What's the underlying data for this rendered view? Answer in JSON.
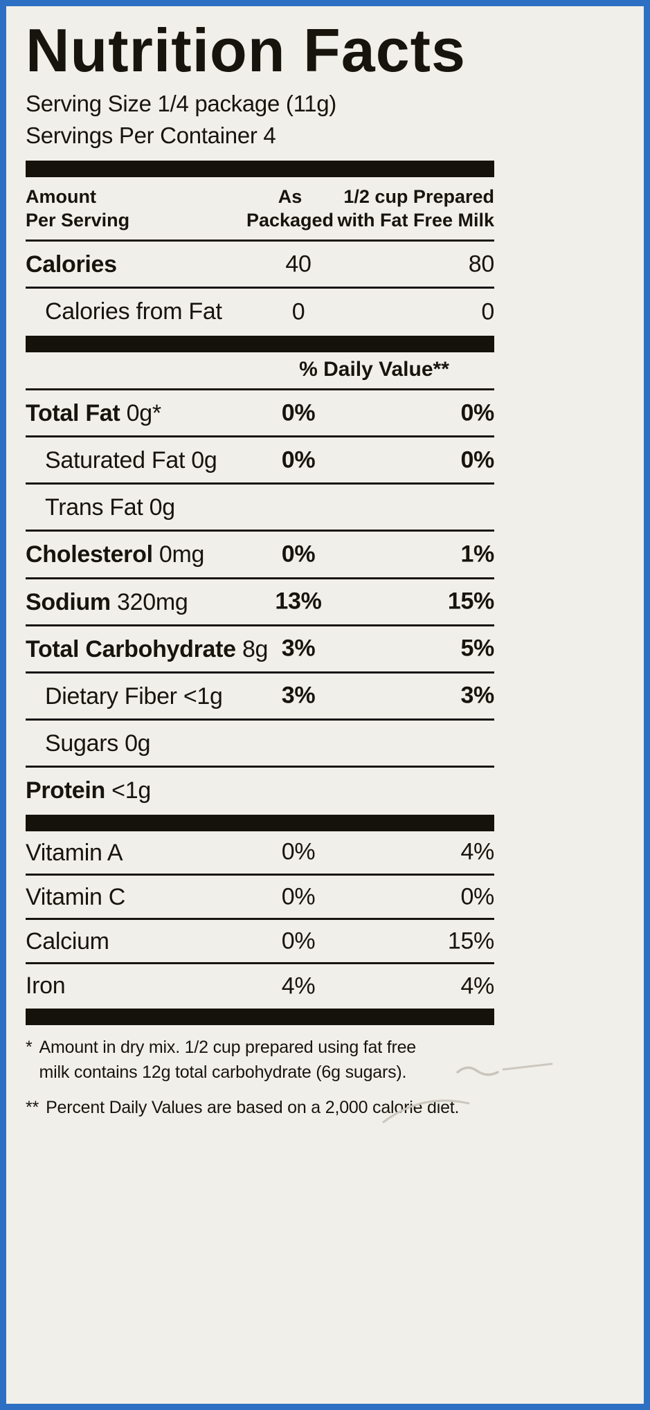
{
  "colors": {
    "border": "#2d70c3",
    "background": "#f1efe9",
    "ink": "#17140e",
    "bar": "#15110b"
  },
  "title": "Nutrition Facts",
  "serving_info": {
    "serving_size": "Serving Size 1/4 package (11g)",
    "servings_per_container": "Servings Per Container 4"
  },
  "table_header": {
    "col_amount": [
      "Amount",
      "Per Serving"
    ],
    "col_packaged": [
      "As",
      "Packaged"
    ],
    "col_prepared": [
      "1/2 cup Prepared",
      "with Fat Free Milk"
    ]
  },
  "daily_value_label": "% Daily Value**",
  "calories_section": [
    {
      "id": "calories",
      "bold": "Calories",
      "text": "",
      "indent": false,
      "pkg": "40",
      "prep": "80",
      "strong_values": false
    },
    {
      "id": "calories-from-fat",
      "bold": "",
      "text": "Calories from Fat",
      "indent": true,
      "pkg": "0",
      "prep": "0",
      "strong_values": false
    }
  ],
  "nutrient_section": [
    {
      "id": "total-fat",
      "bold": "Total Fat",
      "text": " 0g*",
      "indent": false,
      "pkg": "0%",
      "prep": "0%",
      "strong_values": true
    },
    {
      "id": "saturated-fat",
      "bold": "",
      "text": "Saturated Fat 0g",
      "indent": true,
      "pkg": "0%",
      "prep": "0%",
      "strong_values": true
    },
    {
      "id": "trans-fat",
      "bold": "",
      "text": "Trans Fat 0g",
      "indent": true,
      "pkg": "",
      "prep": "",
      "strong_values": true
    },
    {
      "id": "cholesterol",
      "bold": "Cholesterol",
      "text": " 0mg",
      "indent": false,
      "pkg": "0%",
      "prep": "1%",
      "strong_values": true
    },
    {
      "id": "sodium",
      "bold": "Sodium",
      "text": " 320mg",
      "indent": false,
      "pkg": "13%",
      "prep": "15%",
      "strong_values": true
    },
    {
      "id": "total-carbohydrate",
      "bold": "Total Carbohydrate",
      "text": " 8g",
      "indent": false,
      "pkg": "3%",
      "prep": "5%",
      "strong_values": true
    },
    {
      "id": "dietary-fiber",
      "bold": "",
      "text": "Dietary Fiber <1g",
      "indent": true,
      "pkg": "3%",
      "prep": "3%",
      "strong_values": true
    },
    {
      "id": "sugars",
      "bold": "",
      "text": "Sugars 0g",
      "indent": true,
      "pkg": "",
      "prep": "",
      "strong_values": true
    },
    {
      "id": "protein",
      "bold": "Protein",
      "text": " <1g",
      "indent": false,
      "pkg": "",
      "prep": "",
      "strong_values": true
    }
  ],
  "vitamin_section": [
    {
      "id": "vitamin-a",
      "bold": "",
      "text": "Vitamin A",
      "indent": false,
      "pkg": "0%",
      "prep": "4%",
      "strong_values": false
    },
    {
      "id": "vitamin-c",
      "bold": "",
      "text": "Vitamin C",
      "indent": false,
      "pkg": "0%",
      "prep": "0%",
      "strong_values": false
    },
    {
      "id": "calcium",
      "bold": "",
      "text": "Calcium",
      "indent": false,
      "pkg": "0%",
      "prep": "15%",
      "strong_values": false
    },
    {
      "id": "iron",
      "bold": "",
      "text": "Iron",
      "indent": false,
      "pkg": "4%",
      "prep": "4%",
      "strong_values": false
    }
  ],
  "footnotes": [
    {
      "marker": "*",
      "lines": [
        "Amount in dry mix. 1/2 cup prepared using fat free",
        "milk contains 12g total carbohydrate (6g sugars)."
      ]
    },
    {
      "marker": "**",
      "lines": [
        "Percent Daily Values are based on a 2,000 calorie diet."
      ]
    }
  ]
}
